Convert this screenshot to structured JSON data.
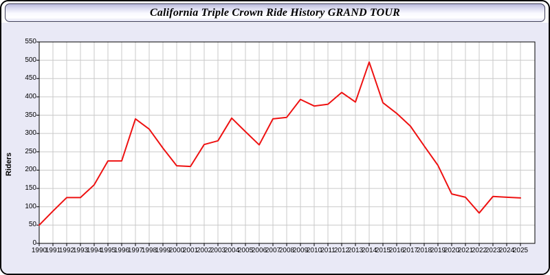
{
  "titlebar": {
    "title": "California Triple Crown Ride History GRAND TOUR"
  },
  "chart_data": {
    "type": "line",
    "title": "California Triple Crown Ride History GRAND TOUR",
    "xlabel": "",
    "ylabel": "Riders",
    "x": [
      1990,
      1991,
      1992,
      1993,
      1994,
      1995,
      1996,
      1997,
      1998,
      1999,
      2000,
      2001,
      2002,
      2003,
      2004,
      2005,
      2006,
      2007,
      2008,
      2009,
      2010,
      2011,
      2012,
      2013,
      2014,
      2015,
      2016,
      2017,
      2018,
      2019,
      2020,
      2021,
      2022,
      2023,
      2024,
      2025
    ],
    "series": [
      {
        "name": "Riders",
        "values": [
          50,
          88,
          125,
          125,
          160,
          225,
          225,
          340,
          312,
          260,
          212,
          210,
          270,
          280,
          342,
          305,
          269,
          340,
          344,
          393,
          375,
          380,
          412,
          386,
          495,
          384,
          355,
          320,
          266,
          213,
          135,
          126,
          83,
          128,
          126,
          124
        ]
      }
    ],
    "ylim": [
      0,
      550
    ],
    "ytick_step": 50,
    "y_ticks": [
      0,
      50,
      100,
      150,
      200,
      250,
      300,
      350,
      400,
      450,
      500,
      550
    ],
    "grid": true,
    "legend_position": "none",
    "colors": {
      "line": "#ee1111",
      "grid": "#c9c9c9",
      "plot_bg": "#ffffff",
      "panel_bg": "#e9e9f6",
      "axis": "#000000"
    }
  }
}
